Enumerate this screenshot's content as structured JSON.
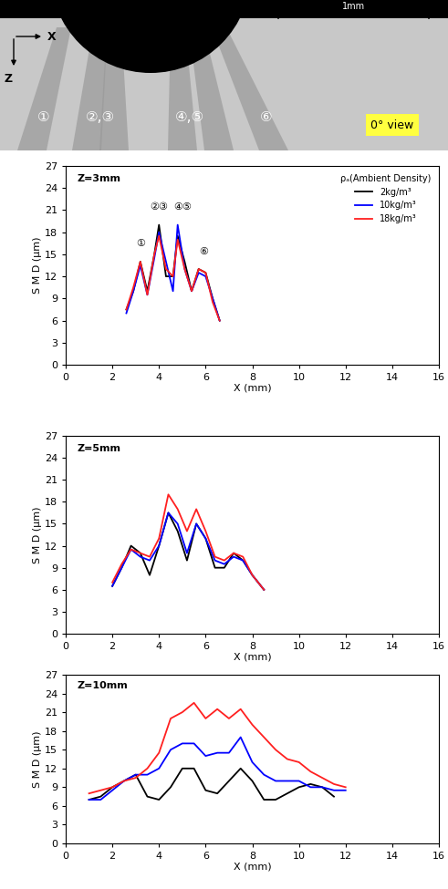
{
  "image_panel": {
    "axis_x": "X",
    "axis_z": "Z",
    "scale_bar": "1mm",
    "view": "0° view",
    "plume_labels": [
      "①",
      "②,③",
      "④,⑤",
      "⑥"
    ]
  },
  "chart_data": [
    {
      "type": "line",
      "title": "Z=3mm",
      "x_label": "X (mm)",
      "y_label": "S M D (μm)",
      "xlim": [
        0,
        16
      ],
      "xticks": [
        0,
        2,
        4,
        6,
        8,
        10,
        12,
        14,
        16
      ],
      "ylim": [
        0,
        27
      ],
      "yticks": [
        0,
        3,
        6,
        9,
        12,
        15,
        18,
        21,
        24,
        27
      ],
      "legend": "upper right",
      "legend_title": "ρₐ(Ambient Density)",
      "annotations": [
        {
          "text": "①",
          "x": 3.2,
          "y": 15.8
        },
        {
          "text": "②③",
          "x": 4.0,
          "y": 20.8
        },
        {
          "text": "④⑤",
          "x": 5.0,
          "y": 20.8
        },
        {
          "text": "⑥",
          "x": 5.9,
          "y": 14.8
        }
      ],
      "x": [
        2.6,
        2.9,
        3.2,
        3.5,
        3.8,
        4.0,
        4.3,
        4.6,
        4.8,
        5.1,
        5.4,
        5.7,
        6.0,
        6.3,
        6.6
      ],
      "series": [
        {
          "name": "2kg/m³",
          "color": "#000000",
          "values": [
            7.5,
            10,
            14,
            10,
            15,
            19,
            12,
            12,
            17.5,
            14,
            10,
            13,
            12.5,
            9,
            6
          ]
        },
        {
          "name": "10kg/m³",
          "color": "#0000ff",
          "values": [
            7,
            10,
            13.5,
            9.5,
            14.5,
            18,
            14,
            10,
            19,
            13,
            10,
            12.5,
            12,
            9,
            6
          ]
        },
        {
          "name": "18kg/m³",
          "color": "#ff2020",
          "values": [
            7.5,
            10.5,
            14,
            9.5,
            15,
            17.5,
            13,
            12,
            17,
            13,
            10,
            13,
            12.5,
            8.5,
            6
          ]
        }
      ]
    },
    {
      "type": "line",
      "title": "Z=5mm",
      "x_label": "X (mm)",
      "y_label": "S M D (μm)",
      "xlim": [
        0,
        16
      ],
      "xticks": [
        0,
        2,
        4,
        6,
        8,
        10,
        12,
        14,
        16
      ],
      "ylim": [
        0,
        27
      ],
      "yticks": [
        0,
        3,
        6,
        9,
        12,
        15,
        18,
        21,
        24,
        27
      ],
      "x": [
        2.0,
        2.4,
        2.8,
        3.2,
        3.6,
        4.0,
        4.4,
        4.8,
        5.2,
        5.6,
        6.0,
        6.4,
        6.8,
        7.2,
        7.6,
        8.0,
        8.5
      ],
      "series": [
        {
          "color": "#000000",
          "values": [
            6.5,
            9,
            12,
            11,
            8,
            12,
            16.5,
            14,
            10,
            15,
            13,
            9,
            9,
            11,
            10,
            8,
            6
          ]
        },
        {
          "color": "#0000ff",
          "values": [
            6.5,
            9,
            11.5,
            10.5,
            10,
            12,
            16.5,
            15,
            11,
            15,
            13,
            10,
            9.5,
            10.5,
            10,
            8,
            6
          ]
        },
        {
          "color": "#ff2020",
          "values": [
            7,
            9.5,
            11.5,
            11,
            10.5,
            13,
            19,
            17,
            14,
            17,
            14,
            10.5,
            10,
            11,
            10.5,
            8,
            6
          ]
        }
      ]
    },
    {
      "type": "line",
      "title": "Z=10mm",
      "x_label": "X (mm)",
      "y_label": "S M D (μm)",
      "xlim": [
        0,
        16
      ],
      "xticks": [
        0,
        2,
        4,
        6,
        8,
        10,
        12,
        14,
        16
      ],
      "ylim": [
        0,
        27
      ],
      "yticks": [
        0,
        3,
        6,
        9,
        12,
        15,
        18,
        21,
        24,
        27
      ],
      "x": [
        1,
        1.5,
        2,
        2.5,
        3,
        3.5,
        4,
        4.5,
        5,
        5.5,
        6,
        6.5,
        7,
        7.5,
        8,
        8.5,
        9,
        9.5,
        10,
        10.5,
        11,
        11.5,
        12
      ],
      "series": [
        {
          "color": "#000000",
          "values": [
            7,
            7.5,
            9,
            10,
            11,
            7.5,
            7,
            9,
            12,
            12,
            8.5,
            8,
            10,
            12,
            10,
            7,
            7,
            8,
            9,
            9.5,
            9,
            7.5,
            null
          ]
        },
        {
          "color": "#0000ff",
          "values": [
            7,
            7,
            8.5,
            10,
            11,
            11,
            12,
            15,
            16,
            16,
            14,
            14.5,
            14.5,
            17,
            13,
            11,
            10,
            10,
            10,
            9,
            9,
            8.5,
            8.5
          ]
        },
        {
          "color": "#ff2020",
          "values": [
            8,
            8.5,
            9,
            10,
            10.5,
            12,
            14.5,
            20,
            21,
            22.5,
            20,
            21.5,
            20,
            21.5,
            19,
            17,
            15,
            13.5,
            13,
            11.5,
            10.5,
            9.5,
            9
          ]
        }
      ]
    }
  ]
}
